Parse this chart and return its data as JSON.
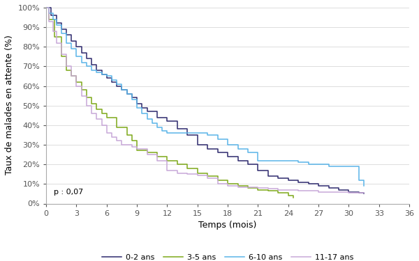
{
  "title": "",
  "xlabel": "Temps (mois)",
  "ylabel": "Taux de malades en attente (%)",
  "xlim": [
    0,
    36
  ],
  "ylim": [
    0,
    1.005
  ],
  "xticks": [
    0,
    3,
    6,
    9,
    12,
    15,
    18,
    21,
    24,
    27,
    30,
    33,
    36
  ],
  "yticks": [
    0,
    0.1,
    0.2,
    0.3,
    0.4,
    0.5,
    0.6,
    0.7,
    0.8,
    0.9,
    1.0
  ],
  "annotation": "p : 0,07",
  "legend_labels": [
    "0-2 ans",
    "3-5 ans",
    "6-10 ans",
    "11-17 ans"
  ],
  "line_colors": [
    "#2e2a6e",
    "#7da819",
    "#5ab4e8",
    "#c8a8d8"
  ],
  "series": {
    "0-2 ans": {
      "x": [
        0,
        0.5,
        1,
        1.5,
        2,
        2.5,
        3,
        3.5,
        4,
        4.5,
        5,
        5.5,
        6,
        6.5,
        7,
        7.5,
        8,
        8.5,
        9,
        9.5,
        10,
        11,
        12,
        13,
        14,
        15,
        16,
        17,
        18,
        19,
        20,
        21,
        22,
        23,
        24,
        25,
        26,
        27,
        28,
        29,
        30,
        31,
        31.5
      ],
      "y": [
        1.0,
        0.96,
        0.92,
        0.89,
        0.86,
        0.83,
        0.8,
        0.77,
        0.74,
        0.71,
        0.68,
        0.66,
        0.64,
        0.62,
        0.6,
        0.58,
        0.56,
        0.54,
        0.51,
        0.49,
        0.47,
        0.44,
        0.42,
        0.38,
        0.35,
        0.3,
        0.28,
        0.26,
        0.24,
        0.22,
        0.2,
        0.17,
        0.14,
        0.13,
        0.12,
        0.11,
        0.1,
        0.09,
        0.08,
        0.07,
        0.06,
        0.055,
        0.05
      ]
    },
    "3-5 ans": {
      "x": [
        0,
        0.3,
        0.8,
        1.5,
        2,
        2.5,
        3,
        3.5,
        4,
        4.5,
        5,
        5.5,
        6,
        7,
        8,
        8.5,
        9,
        10,
        11,
        12,
        13,
        14,
        15,
        16,
        17,
        18,
        19,
        20,
        21,
        22,
        23,
        24,
        24.5
      ],
      "y": [
        1.0,
        0.94,
        0.85,
        0.75,
        0.68,
        0.65,
        0.62,
        0.58,
        0.54,
        0.51,
        0.48,
        0.46,
        0.44,
        0.39,
        0.35,
        0.32,
        0.27,
        0.26,
        0.24,
        0.22,
        0.2,
        0.18,
        0.155,
        0.14,
        0.12,
        0.1,
        0.09,
        0.08,
        0.07,
        0.065,
        0.055,
        0.04,
        0.03
      ]
    },
    "6-10 ans": {
      "x": [
        0,
        0.3,
        0.7,
        1,
        1.5,
        2,
        2.5,
        3,
        3.5,
        4,
        4.5,
        5,
        5.5,
        6,
        6.5,
        7,
        7.5,
        8,
        8.5,
        9,
        9.5,
        10,
        10.5,
        11,
        11.5,
        12,
        14,
        15,
        16,
        17,
        18,
        19,
        20,
        21,
        22,
        23,
        24,
        25,
        26,
        27,
        28,
        29,
        30,
        31,
        31.5
      ],
      "y": [
        1.0,
        0.97,
        0.94,
        0.91,
        0.87,
        0.82,
        0.79,
        0.75,
        0.72,
        0.7,
        0.68,
        0.67,
        0.66,
        0.65,
        0.63,
        0.61,
        0.58,
        0.56,
        0.53,
        0.49,
        0.46,
        0.43,
        0.41,
        0.39,
        0.37,
        0.36,
        0.36,
        0.36,
        0.35,
        0.33,
        0.3,
        0.28,
        0.26,
        0.22,
        0.22,
        0.22,
        0.22,
        0.21,
        0.2,
        0.2,
        0.19,
        0.19,
        0.19,
        0.12,
        0.09
      ]
    },
    "11-17 ans": {
      "x": [
        0,
        0.3,
        0.7,
        1,
        1.5,
        2,
        2.5,
        3,
        3.5,
        4,
        4.5,
        5,
        5.5,
        6,
        6.5,
        7,
        7.5,
        8,
        8.5,
        9,
        10,
        11,
        12,
        13,
        14,
        15,
        16,
        17,
        18,
        19,
        20,
        21,
        22,
        23,
        24,
        25,
        26,
        27,
        28,
        29,
        30,
        31,
        31.5
      ],
      "y": [
        1.0,
        0.93,
        0.88,
        0.82,
        0.76,
        0.7,
        0.65,
        0.6,
        0.55,
        0.5,
        0.46,
        0.43,
        0.4,
        0.36,
        0.34,
        0.32,
        0.3,
        0.3,
        0.29,
        0.28,
        0.25,
        0.22,
        0.17,
        0.155,
        0.15,
        0.145,
        0.13,
        0.1,
        0.09,
        0.085,
        0.085,
        0.08,
        0.075,
        0.07,
        0.07,
        0.065,
        0.065,
        0.06,
        0.06,
        0.06,
        0.055,
        0.055,
        0.055
      ]
    }
  }
}
